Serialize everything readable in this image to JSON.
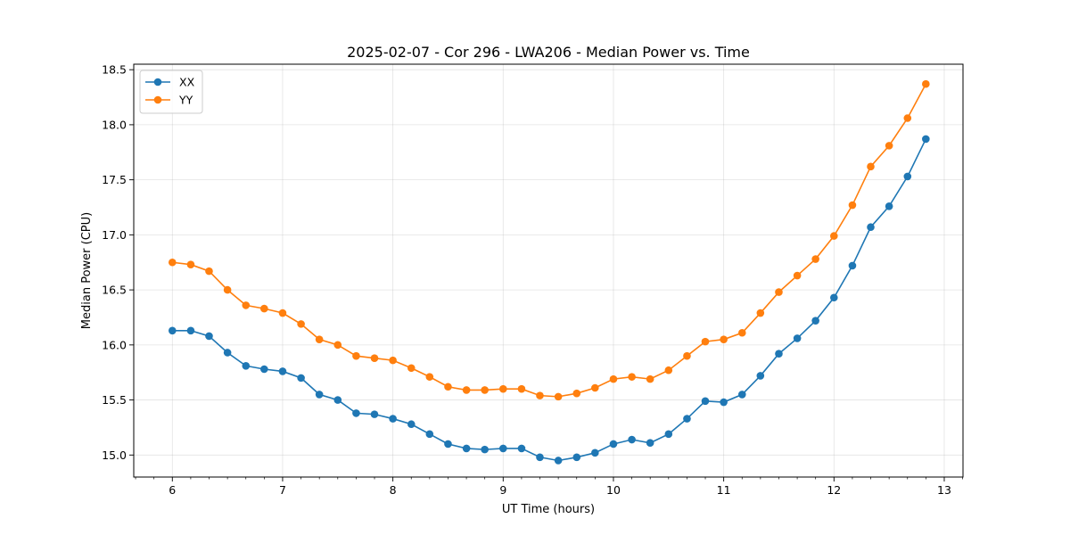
{
  "chart_data": {
    "type": "line",
    "title": "2025-02-07 - Cor 296 - LWA206 - Median Power vs. Time",
    "xlabel": "UT Time (hours)",
    "ylabel": "Median Power (CPU)",
    "xlim": [
      5.65,
      13.17
    ],
    "ylim": [
      14.8,
      18.55
    ],
    "xticks": [
      6,
      7,
      8,
      9,
      10,
      11,
      12,
      13
    ],
    "yticks": [
      15.0,
      15.5,
      16.0,
      16.5,
      17.0,
      17.5,
      18.0,
      18.5
    ],
    "ytick_labels": [
      "15.0",
      "15.5",
      "16.0",
      "16.5",
      "17.0",
      "17.5",
      "18.0",
      "18.5"
    ],
    "grid": true,
    "legend_position": "top-left",
    "x": [
      6.0,
      6.167,
      6.333,
      6.5,
      6.667,
      6.833,
      7.0,
      7.167,
      7.333,
      7.5,
      7.667,
      7.833,
      8.0,
      8.167,
      8.333,
      8.5,
      8.667,
      8.833,
      9.0,
      9.167,
      9.333,
      9.5,
      9.667,
      9.833,
      10.0,
      10.167,
      10.333,
      10.5,
      10.667,
      10.833,
      11.0,
      11.167,
      11.333,
      11.5,
      11.667,
      11.833,
      12.0,
      12.167,
      12.333,
      12.5,
      12.667,
      12.833
    ],
    "series": [
      {
        "name": "XX",
        "color": "#1f77b4",
        "values": [
          16.13,
          16.13,
          16.08,
          15.93,
          15.81,
          15.78,
          15.76,
          15.7,
          15.55,
          15.5,
          15.38,
          15.37,
          15.33,
          15.28,
          15.19,
          15.1,
          15.06,
          15.05,
          15.06,
          15.06,
          14.98,
          14.95,
          14.98,
          15.02,
          15.1,
          15.14,
          15.11,
          15.19,
          15.33,
          15.49,
          15.48,
          15.55,
          15.72,
          15.92,
          16.06,
          16.22,
          16.43,
          16.72,
          17.07,
          17.26,
          17.53,
          17.87
        ]
      },
      {
        "name": "YY",
        "color": "#ff7f0e",
        "values": [
          16.75,
          16.73,
          16.67,
          16.5,
          16.36,
          16.33,
          16.29,
          16.19,
          16.05,
          16.0,
          15.9,
          15.88,
          15.86,
          15.79,
          15.71,
          15.62,
          15.59,
          15.59,
          15.6,
          15.6,
          15.54,
          15.53,
          15.56,
          15.61,
          15.69,
          15.71,
          15.69,
          15.77,
          15.9,
          16.03,
          16.05,
          16.11,
          16.29,
          16.48,
          16.63,
          16.78,
          16.99,
          17.27,
          17.62,
          17.81,
          18.06,
          18.37
        ]
      }
    ]
  }
}
